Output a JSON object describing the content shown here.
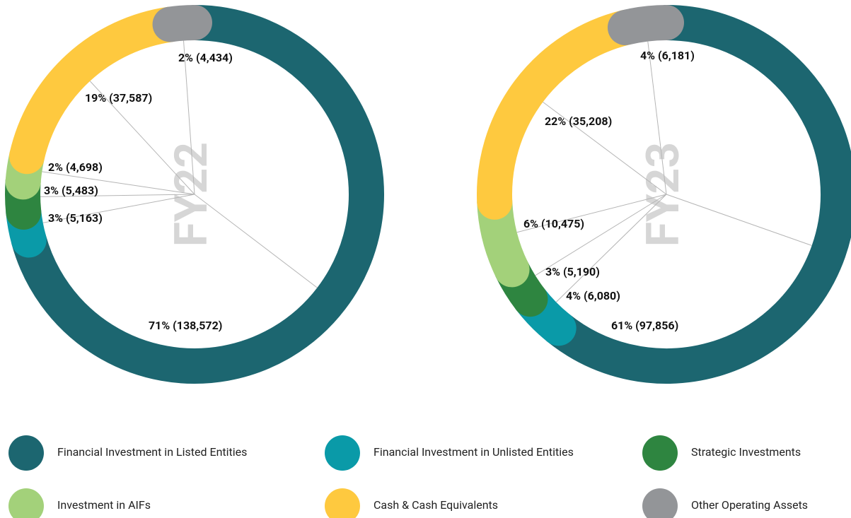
{
  "chart_data": [
    {
      "type": "pie",
      "title": "FY22",
      "categories": [
        "Financial Investment in Listed Entities",
        "Financial Investment in Unlisted Entities",
        "Strategic Investments",
        "Investment in AIFs",
        "Cash & Cash Equivalents",
        "Other Operating Assets"
      ],
      "values": [
        138572,
        5163,
        5483,
        4698,
        37587,
        4434
      ],
      "value_labels": [
        "71% (138,572)",
        "3% (5,163)",
        "3% (5,483)",
        "2% (4,698)",
        "19% (37,587)",
        "2% (4,434)"
      ],
      "colors": [
        "#1c6670",
        "#0a9aa8",
        "#2e8540",
        "#a3d17a",
        "#fec93f",
        "#939598"
      ]
    },
    {
      "type": "pie",
      "title": "FY23",
      "categories": [
        "Financial Investment in Listed Entities",
        "Financial Investment in Unlisted Entities",
        "Strategic Investments",
        "Investment in AIFs",
        "Cash & Cash Equivalents",
        "Other Operating Assets"
      ],
      "values": [
        97856,
        6080,
        5190,
        10475,
        35208,
        6181
      ],
      "value_labels": [
        "61% (97,856)",
        "4% (6,080)",
        "3% (5,190)",
        "6% (10,475)",
        "22% (35,208)",
        "4% (6,181)"
      ],
      "colors": [
        "#1c6670",
        "#0a9aa8",
        "#2e8540",
        "#a3d17a",
        "#fec93f",
        "#939598"
      ]
    }
  ]
}
